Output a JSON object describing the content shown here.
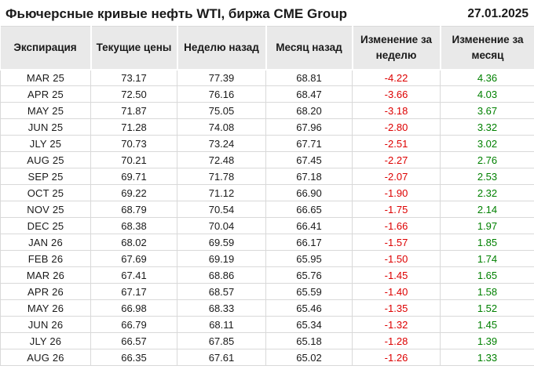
{
  "header": {
    "title": "Фьючерсные кривые нефть WTI, биржа CME Group",
    "date": "27.01.2025"
  },
  "colors": {
    "negative": "#dd0000",
    "positive": "#008000",
    "header_bg": "#e9e9e9",
    "grid": "#d9d9d9"
  },
  "chart_data": {
    "type": "table",
    "title": "Фьючерсные кривые нефть WTI, биржа CME Group",
    "date": "27.01.2025",
    "columns": [
      "Экспирация",
      "Текущие цены",
      "Неделю назад",
      "Месяц назад",
      "Изменение за неделю",
      "Изменение за месяц"
    ],
    "rows": [
      {
        "expiration": "MAR 25",
        "current": "73.17",
        "week_ago": "77.39",
        "month_ago": "68.81",
        "week_change": "-4.22",
        "month_change": "4.36"
      },
      {
        "expiration": "APR 25",
        "current": "72.50",
        "week_ago": "76.16",
        "month_ago": "68.47",
        "week_change": "-3.66",
        "month_change": "4.03"
      },
      {
        "expiration": "MAY 25",
        "current": "71.87",
        "week_ago": "75.05",
        "month_ago": "68.20",
        "week_change": "-3.18",
        "month_change": "3.67"
      },
      {
        "expiration": "JUN 25",
        "current": "71.28",
        "week_ago": "74.08",
        "month_ago": "67.96",
        "week_change": "-2.80",
        "month_change": "3.32"
      },
      {
        "expiration": "JLY 25",
        "current": "70.73",
        "week_ago": "73.24",
        "month_ago": "67.71",
        "week_change": "-2.51",
        "month_change": "3.02"
      },
      {
        "expiration": "AUG 25",
        "current": "70.21",
        "week_ago": "72.48",
        "month_ago": "67.45",
        "week_change": "-2.27",
        "month_change": "2.76"
      },
      {
        "expiration": "SEP 25",
        "current": "69.71",
        "week_ago": "71.78",
        "month_ago": "67.18",
        "week_change": "-2.07",
        "month_change": "2.53"
      },
      {
        "expiration": "OCT 25",
        "current": "69.22",
        "week_ago": "71.12",
        "month_ago": "66.90",
        "week_change": "-1.90",
        "month_change": "2.32"
      },
      {
        "expiration": "NOV 25",
        "current": "68.79",
        "week_ago": "70.54",
        "month_ago": "66.65",
        "week_change": "-1.75",
        "month_change": "2.14"
      },
      {
        "expiration": "DEC 25",
        "current": "68.38",
        "week_ago": "70.04",
        "month_ago": "66.41",
        "week_change": "-1.66",
        "month_change": "1.97"
      },
      {
        "expiration": "JAN 26",
        "current": "68.02",
        "week_ago": "69.59",
        "month_ago": "66.17",
        "week_change": "-1.57",
        "month_change": "1.85"
      },
      {
        "expiration": "FEB 26",
        "current": "67.69",
        "week_ago": "69.19",
        "month_ago": "65.95",
        "week_change": "-1.50",
        "month_change": "1.74"
      },
      {
        "expiration": "MAR 26",
        "current": "67.41",
        "week_ago": "68.86",
        "month_ago": "65.76",
        "week_change": "-1.45",
        "month_change": "1.65"
      },
      {
        "expiration": "APR 26",
        "current": "67.17",
        "week_ago": "68.57",
        "month_ago": "65.59",
        "week_change": "-1.40",
        "month_change": "1.58"
      },
      {
        "expiration": "MAY 26",
        "current": "66.98",
        "week_ago": "68.33",
        "month_ago": "65.46",
        "week_change": "-1.35",
        "month_change": "1.52"
      },
      {
        "expiration": "JUN 26",
        "current": "66.79",
        "week_ago": "68.11",
        "month_ago": "65.34",
        "week_change": "-1.32",
        "month_change": "1.45"
      },
      {
        "expiration": "JLY 26",
        "current": "66.57",
        "week_ago": "67.85",
        "month_ago": "65.18",
        "week_change": "-1.28",
        "month_change": "1.39"
      },
      {
        "expiration": "AUG 26",
        "current": "66.35",
        "week_ago": "67.61",
        "month_ago": "65.02",
        "week_change": "-1.26",
        "month_change": "1.33"
      }
    ]
  }
}
